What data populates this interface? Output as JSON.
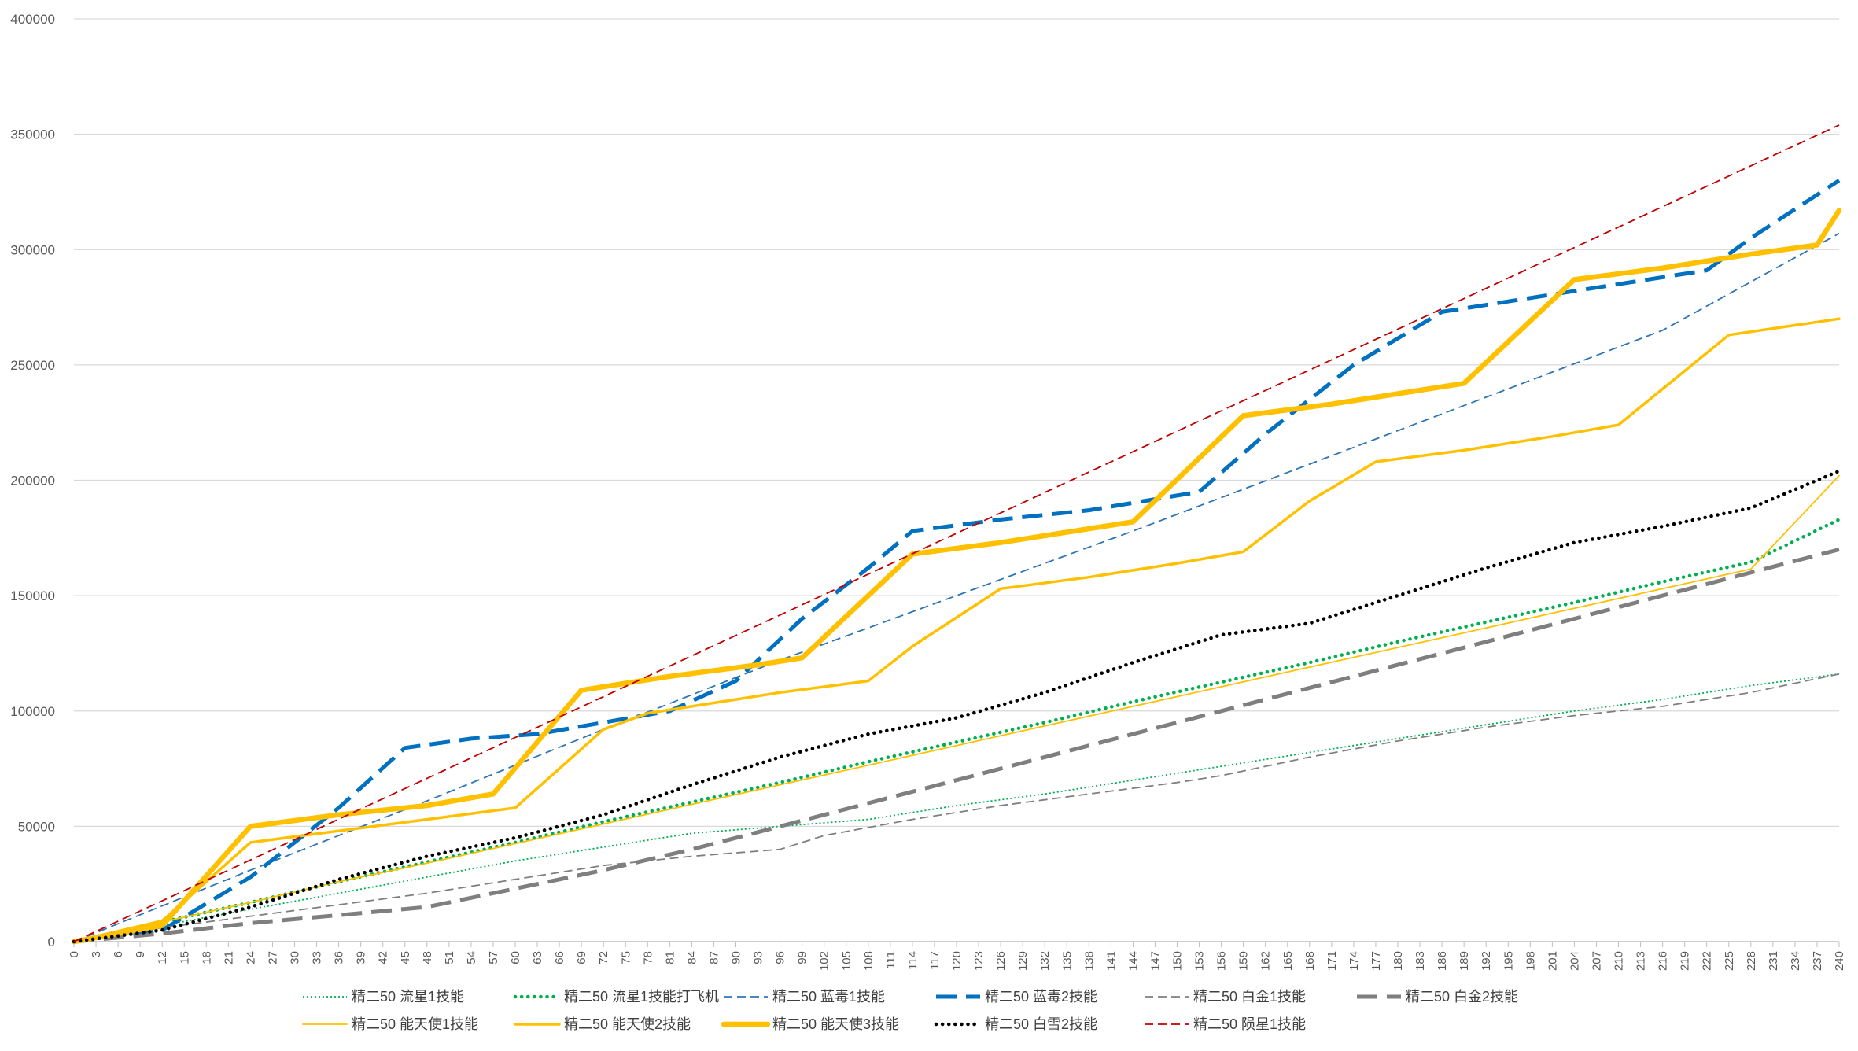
{
  "chart_data": {
    "type": "line",
    "title": "",
    "xlabel": "",
    "ylabel": "",
    "xlim": [
      0,
      240
    ],
    "ylim": [
      0,
      400000
    ],
    "x_tick_step": 3,
    "y_ticks": [
      0,
      50000,
      100000,
      150000,
      200000,
      250000,
      300000,
      350000,
      400000
    ],
    "grid": "horizontal",
    "legend_position": "bottom",
    "series": [
      {
        "name": "精二50 流星1技能",
        "color": "#00B050",
        "dash": "dotted-thin",
        "points": [
          [
            0,
            0
          ],
          [
            12,
            7000
          ],
          [
            24,
            14000
          ],
          [
            36,
            21000
          ],
          [
            48,
            28000
          ],
          [
            60,
            35000
          ],
          [
            72,
            41000
          ],
          [
            84,
            47000
          ],
          [
            96,
            50000
          ],
          [
            108,
            53000
          ],
          [
            120,
            59000
          ],
          [
            132,
            64000
          ],
          [
            144,
            70000
          ],
          [
            156,
            76000
          ],
          [
            168,
            82000
          ],
          [
            180,
            88000
          ],
          [
            192,
            94000
          ],
          [
            204,
            100000
          ],
          [
            216,
            105000
          ],
          [
            228,
            111000
          ],
          [
            240,
            116000
          ]
        ]
      },
      {
        "name": "精二50 流星1技能打飞机",
        "color": "#00B050",
        "dash": "dotted-thick",
        "points": [
          [
            0,
            0
          ],
          [
            12,
            8500
          ],
          [
            24,
            17000
          ],
          [
            36,
            26000
          ],
          [
            48,
            34500
          ],
          [
            60,
            43000
          ],
          [
            72,
            52000
          ],
          [
            84,
            60500
          ],
          [
            96,
            69000
          ],
          [
            108,
            78000
          ],
          [
            120,
            86500
          ],
          [
            132,
            95000
          ],
          [
            144,
            104000
          ],
          [
            156,
            112500
          ],
          [
            168,
            121000
          ],
          [
            180,
            130000
          ],
          [
            192,
            138500
          ],
          [
            204,
            147000
          ],
          [
            216,
            156000
          ],
          [
            228,
            164500
          ],
          [
            240,
            183000
          ]
        ]
      },
      {
        "name": "精二50 蓝毒1技能",
        "color": "#2E75B6",
        "dash": "dashed-thin",
        "points": [
          [
            0,
            0
          ],
          [
            24,
            31000
          ],
          [
            48,
            61000
          ],
          [
            72,
            92000
          ],
          [
            96,
            122000
          ],
          [
            120,
            150000
          ],
          [
            144,
            178000
          ],
          [
            168,
            207000
          ],
          [
            192,
            236000
          ],
          [
            216,
            265000
          ],
          [
            240,
            307000
          ]
        ]
      },
      {
        "name": "精二50 蓝毒2技能",
        "color": "#0070C0",
        "dash": "dashed-thick",
        "points": [
          [
            0,
            0
          ],
          [
            12,
            5000
          ],
          [
            24,
            28000
          ],
          [
            36,
            58000
          ],
          [
            45,
            84000
          ],
          [
            54,
            88000
          ],
          [
            63,
            90000
          ],
          [
            72,
            95000
          ],
          [
            81,
            100000
          ],
          [
            90,
            113000
          ],
          [
            99,
            140000
          ],
          [
            108,
            162000
          ],
          [
            114,
            178000
          ],
          [
            126,
            183000
          ],
          [
            138,
            187000
          ],
          [
            153,
            195000
          ],
          [
            162,
            220000
          ],
          [
            174,
            250000
          ],
          [
            186,
            273000
          ],
          [
            198,
            279000
          ],
          [
            210,
            285000
          ],
          [
            222,
            291000
          ],
          [
            228,
            305000
          ],
          [
            240,
            330000
          ]
        ]
      },
      {
        "name": "精二50 白金1技能",
        "color": "#7F7F7F",
        "dash": "dashed-thin",
        "points": [
          [
            0,
            0
          ],
          [
            12,
            6000
          ],
          [
            24,
            11000
          ],
          [
            36,
            16000
          ],
          [
            48,
            21000
          ],
          [
            60,
            27000
          ],
          [
            72,
            33000
          ],
          [
            84,
            37000
          ],
          [
            96,
            40000
          ],
          [
            102,
            46000
          ],
          [
            114,
            53000
          ],
          [
            126,
            59000
          ],
          [
            138,
            64000
          ],
          [
            150,
            69000
          ],
          [
            156,
            72000
          ],
          [
            168,
            80000
          ],
          [
            180,
            87000
          ],
          [
            192,
            93000
          ],
          [
            204,
            98000
          ],
          [
            216,
            102000
          ],
          [
            228,
            108000
          ],
          [
            240,
            116000
          ]
        ]
      },
      {
        "name": "精二50 白金2技能",
        "color": "#7F7F7F",
        "dash": "dashed-thick",
        "points": [
          [
            0,
            0
          ],
          [
            12,
            3500
          ],
          [
            24,
            8000
          ],
          [
            36,
            11500
          ],
          [
            48,
            15000
          ],
          [
            60,
            23000
          ],
          [
            72,
            31000
          ],
          [
            84,
            40000
          ],
          [
            96,
            50000
          ],
          [
            108,
            60000
          ],
          [
            120,
            70000
          ],
          [
            132,
            80000
          ],
          [
            144,
            90000
          ],
          [
            156,
            100000
          ],
          [
            168,
            110000
          ],
          [
            180,
            120000
          ],
          [
            192,
            130000
          ],
          [
            204,
            140000
          ],
          [
            216,
            150000
          ],
          [
            228,
            160000
          ],
          [
            240,
            170000
          ]
        ]
      },
      {
        "name": "精二50 能天使1技能",
        "color": "#FFC000",
        "dash": "solid-thin",
        "points": [
          [
            0,
            0
          ],
          [
            12,
            8500
          ],
          [
            24,
            17000
          ],
          [
            36,
            26000
          ],
          [
            48,
            34000
          ],
          [
            60,
            42500
          ],
          [
            72,
            51000
          ],
          [
            84,
            59500
          ],
          [
            96,
            68000
          ],
          [
            108,
            76500
          ],
          [
            120,
            85000
          ],
          [
            132,
            93500
          ],
          [
            144,
            102000
          ],
          [
            156,
            110500
          ],
          [
            168,
            119000
          ],
          [
            180,
            127500
          ],
          [
            192,
            136000
          ],
          [
            204,
            144500
          ],
          [
            216,
            153000
          ],
          [
            228,
            161500
          ],
          [
            240,
            202000
          ]
        ]
      },
      {
        "name": "精二50 能天使2技能",
        "color": "#FFC000",
        "dash": "solid-medium",
        "points": [
          [
            0,
            0
          ],
          [
            12,
            9000
          ],
          [
            24,
            43000
          ],
          [
            36,
            48000
          ],
          [
            48,
            53000
          ],
          [
            60,
            58000
          ],
          [
            72,
            92000
          ],
          [
            78,
            99000
          ],
          [
            84,
            102000
          ],
          [
            96,
            108000
          ],
          [
            108,
            113000
          ],
          [
            114,
            128000
          ],
          [
            126,
            153000
          ],
          [
            138,
            158000
          ],
          [
            150,
            164000
          ],
          [
            159,
            169000
          ],
          [
            168,
            191000
          ],
          [
            177,
            208000
          ],
          [
            189,
            213000
          ],
          [
            201,
            219000
          ],
          [
            210,
            224000
          ],
          [
            225,
            263000
          ],
          [
            240,
            270000
          ]
        ]
      },
      {
        "name": "精二50 能天使3技能",
        "color": "#FFC000",
        "dash": "solid-thick",
        "points": [
          [
            0,
            0
          ],
          [
            12,
            7000
          ],
          [
            24,
            50000
          ],
          [
            36,
            55000
          ],
          [
            48,
            59000
          ],
          [
            57,
            64000
          ],
          [
            69,
            109000
          ],
          [
            81,
            115000
          ],
          [
            93,
            120000
          ],
          [
            99,
            123000
          ],
          [
            114,
            168000
          ],
          [
            126,
            173000
          ],
          [
            144,
            182000
          ],
          [
            159,
            228000
          ],
          [
            171,
            233000
          ],
          [
            189,
            242000
          ],
          [
            204,
            287000
          ],
          [
            216,
            292000
          ],
          [
            228,
            298000
          ],
          [
            237,
            302000
          ],
          [
            240,
            317000
          ]
        ]
      },
      {
        "name": "精二50 白雪2技能",
        "color": "#000000",
        "dash": "dotted-thick",
        "points": [
          [
            0,
            0
          ],
          [
            12,
            5000
          ],
          [
            24,
            15000
          ],
          [
            36,
            27000
          ],
          [
            48,
            37000
          ],
          [
            60,
            45000
          ],
          [
            72,
            55000
          ],
          [
            84,
            68000
          ],
          [
            96,
            80000
          ],
          [
            108,
            90000
          ],
          [
            120,
            97000
          ],
          [
            132,
            108000
          ],
          [
            144,
            121000
          ],
          [
            156,
            133000
          ],
          [
            168,
            138000
          ],
          [
            180,
            150000
          ],
          [
            192,
            162000
          ],
          [
            204,
            173000
          ],
          [
            216,
            180000
          ],
          [
            228,
            188000
          ],
          [
            240,
            204000
          ]
        ]
      },
      {
        "name": "精二50 陨星1技能",
        "color": "#C00000",
        "dash": "dashed-thin",
        "points": [
          [
            0,
            0
          ],
          [
            240,
            354000
          ]
        ]
      }
    ]
  }
}
